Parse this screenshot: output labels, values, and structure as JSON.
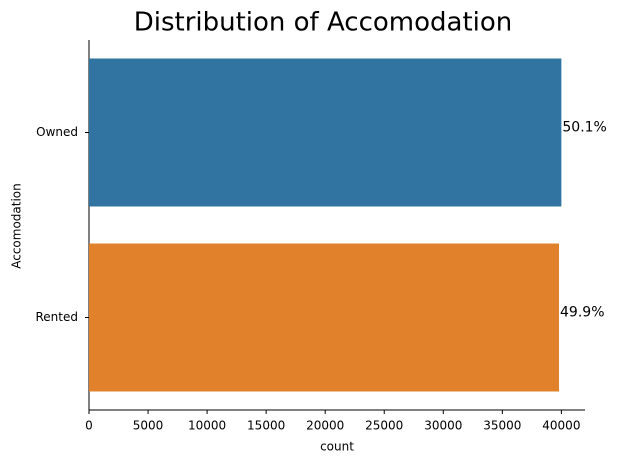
{
  "chart_data": {
    "type": "barh",
    "title": "Distribution of Accomodation",
    "x_label": "count",
    "y_label": "Accomodation",
    "categories": [
      "Owned",
      "Rented"
    ],
    "values": [
      40000,
      39800
    ],
    "value_labels": [
      "50.1%",
      "49.9%"
    ],
    "colors": [
      "#3274a1",
      "#e1812c"
    ],
    "xlim": [
      0,
      42000
    ],
    "xticks": [
      0,
      5000,
      10000,
      15000,
      20000,
      25000,
      30000,
      35000,
      40000
    ]
  }
}
